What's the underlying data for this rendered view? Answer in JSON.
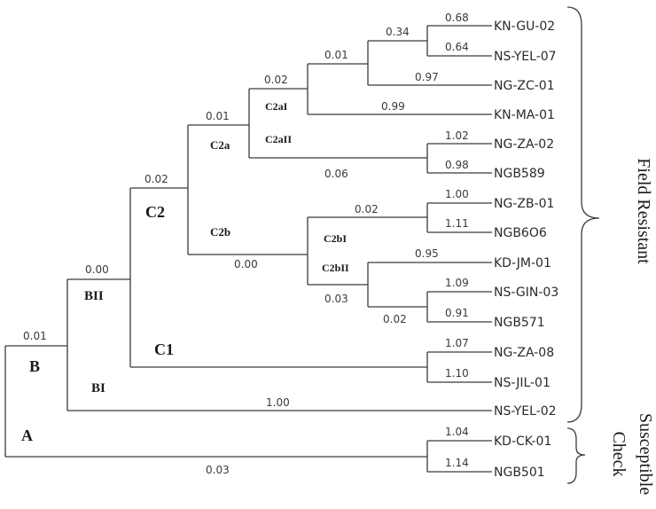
{
  "leaves": [
    {
      "label": "KN-GU-02",
      "value": "0.68"
    },
    {
      "label": "NS-YEL-07",
      "value": "0.64"
    },
    {
      "label": "NG-ZC-01",
      "value": "0.97"
    },
    {
      "label": "KN-MA-01",
      "value": "0.99"
    },
    {
      "label": "NG-ZA-02",
      "value": "1.02"
    },
    {
      "label": "NGB589",
      "value": "0.98"
    },
    {
      "label": "NG-ZB-01",
      "value": "1.00"
    },
    {
      "label": "NGB6O6",
      "value": "1.11"
    },
    {
      "label": "KD-JM-01",
      "value": "0.95"
    },
    {
      "label": "NS-GIN-03",
      "value": "1.09"
    },
    {
      "label": "NGB571",
      "value": "0.91"
    },
    {
      "label": "NG-ZA-08",
      "value": "1.07"
    },
    {
      "label": "NS-JIL-01",
      "value": "1.10"
    },
    {
      "label": "NS-YEL-02",
      "value": "1.00"
    },
    {
      "label": "KD-CK-01",
      "value": "1.04"
    },
    {
      "label": "NGB501",
      "value": "1.14"
    }
  ],
  "internal_values": {
    "root": "0.01",
    "bii": "0.00",
    "c2": "0.02",
    "c2a": "0.01",
    "c2ai": "0.02",
    "kn_ns_zc": "0.01",
    "kn_ns": "0.34",
    "c2aii": "0.06",
    "c2bi": "0.02",
    "c2bii": "0.03",
    "ns_ngb": "0.02",
    "c1": "0.00",
    "a": "0.03"
  },
  "groups": {
    "a": "A",
    "b": "B",
    "bi": "BI",
    "bii": "BII",
    "c1": "C1",
    "c2": "C2",
    "c2a": "C2a",
    "c2b": "C2b",
    "c2ai": "C2aI",
    "c2aii": "C2aII",
    "c2bi": "C2bI",
    "c2bii": "C2bII"
  },
  "side_labels": {
    "field_resistant": "Field Resistant",
    "susceptible": "Susceptible",
    "check": "Check"
  }
}
